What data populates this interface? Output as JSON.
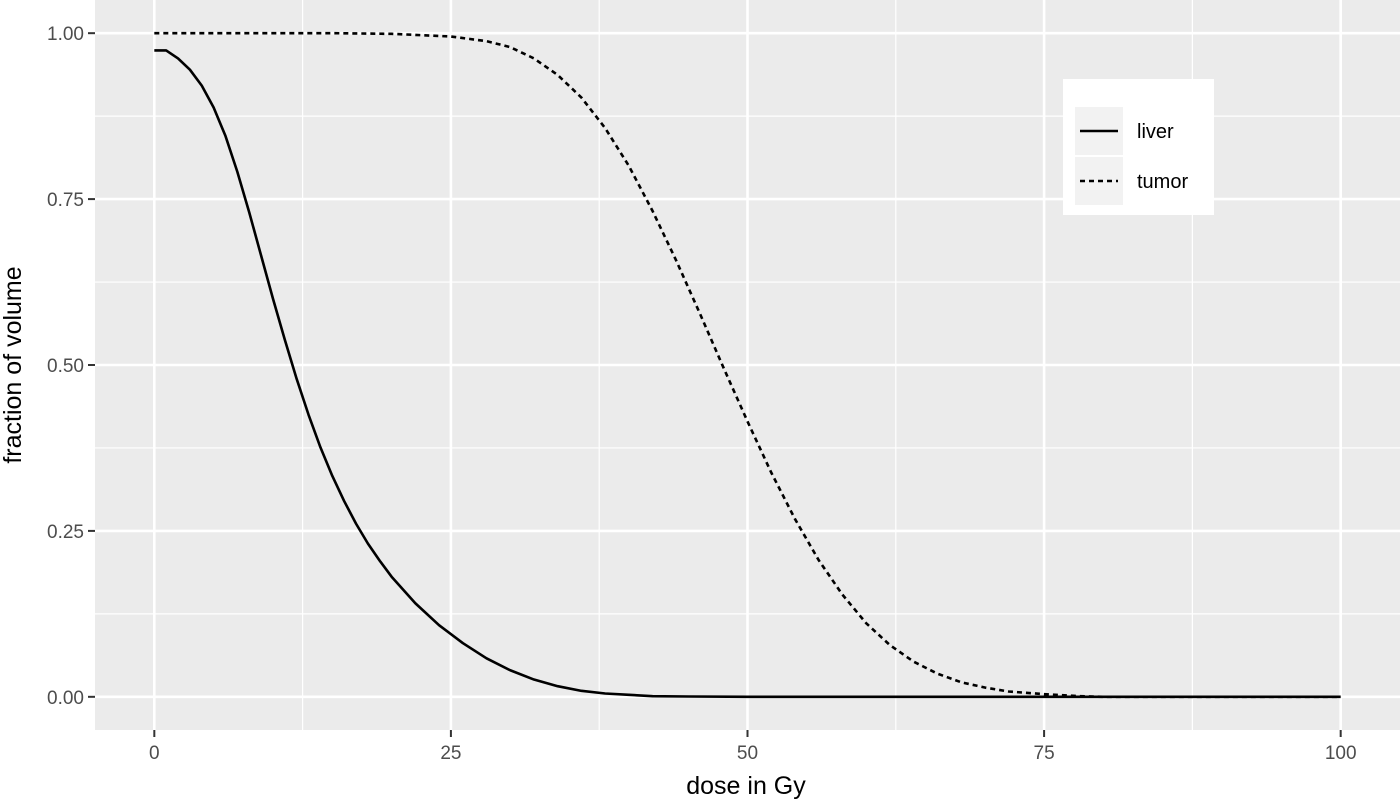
{
  "chart_data": {
    "type": "line",
    "title": "",
    "xlabel": "dose in Gy",
    "ylabel": "fraction of volume",
    "xlim": [
      -5,
      105
    ],
    "ylim": [
      -0.05,
      1.05
    ],
    "x_ticks": [
      0,
      25,
      50,
      75,
      100
    ],
    "x_tick_labels": [
      "0",
      "25",
      "50",
      "75",
      "100"
    ],
    "y_ticks": [
      0,
      0.25,
      0.5,
      0.75,
      1.0
    ],
    "y_tick_labels": [
      "0.00",
      "0.25",
      "0.50",
      "0.75",
      "1.00"
    ],
    "grid": true,
    "legend_position": "top-right",
    "series": [
      {
        "name": "liver",
        "line_style": "solid",
        "color": "#000000",
        "x": [
          0,
          1,
          2,
          3,
          4,
          5,
          6,
          7,
          8,
          9,
          10,
          11,
          12,
          13,
          14,
          15,
          16,
          17,
          18,
          19,
          20,
          22,
          24,
          26,
          28,
          30,
          32,
          34,
          36,
          38,
          40,
          42,
          45,
          50,
          55,
          60,
          70,
          80,
          90,
          100
        ],
        "y": [
          0.974,
          0.974,
          0.962,
          0.945,
          0.921,
          0.888,
          0.845,
          0.791,
          0.73,
          0.665,
          0.6,
          0.538,
          0.479,
          0.425,
          0.376,
          0.333,
          0.295,
          0.261,
          0.231,
          0.205,
          0.181,
          0.141,
          0.108,
          0.081,
          0.058,
          0.04,
          0.026,
          0.016,
          0.009,
          0.005,
          0.003,
          0.001,
          0.0005,
          0.0,
          0.0,
          0.0,
          0.0,
          0.0,
          0.0,
          0.0
        ]
      },
      {
        "name": "tumor",
        "line_style": "dashed",
        "color": "#000000",
        "x": [
          0,
          5,
          10,
          15,
          20,
          25,
          28,
          30,
          32,
          34,
          36,
          38,
          40,
          42,
          44,
          46,
          48,
          50,
          52,
          54,
          56,
          58,
          60,
          62,
          64,
          66,
          68,
          70,
          72,
          75,
          78,
          80,
          85,
          90,
          95,
          100
        ],
        "y": [
          1.0,
          1.0,
          1.0,
          1.0,
          0.999,
          0.995,
          0.988,
          0.979,
          0.962,
          0.937,
          0.903,
          0.857,
          0.8,
          0.732,
          0.657,
          0.577,
          0.495,
          0.415,
          0.338,
          0.268,
          0.206,
          0.154,
          0.111,
          0.078,
          0.053,
          0.035,
          0.022,
          0.014,
          0.008,
          0.004,
          0.001,
          0.0,
          0.0,
          0.0,
          0.0,
          0.0
        ]
      }
    ]
  }
}
